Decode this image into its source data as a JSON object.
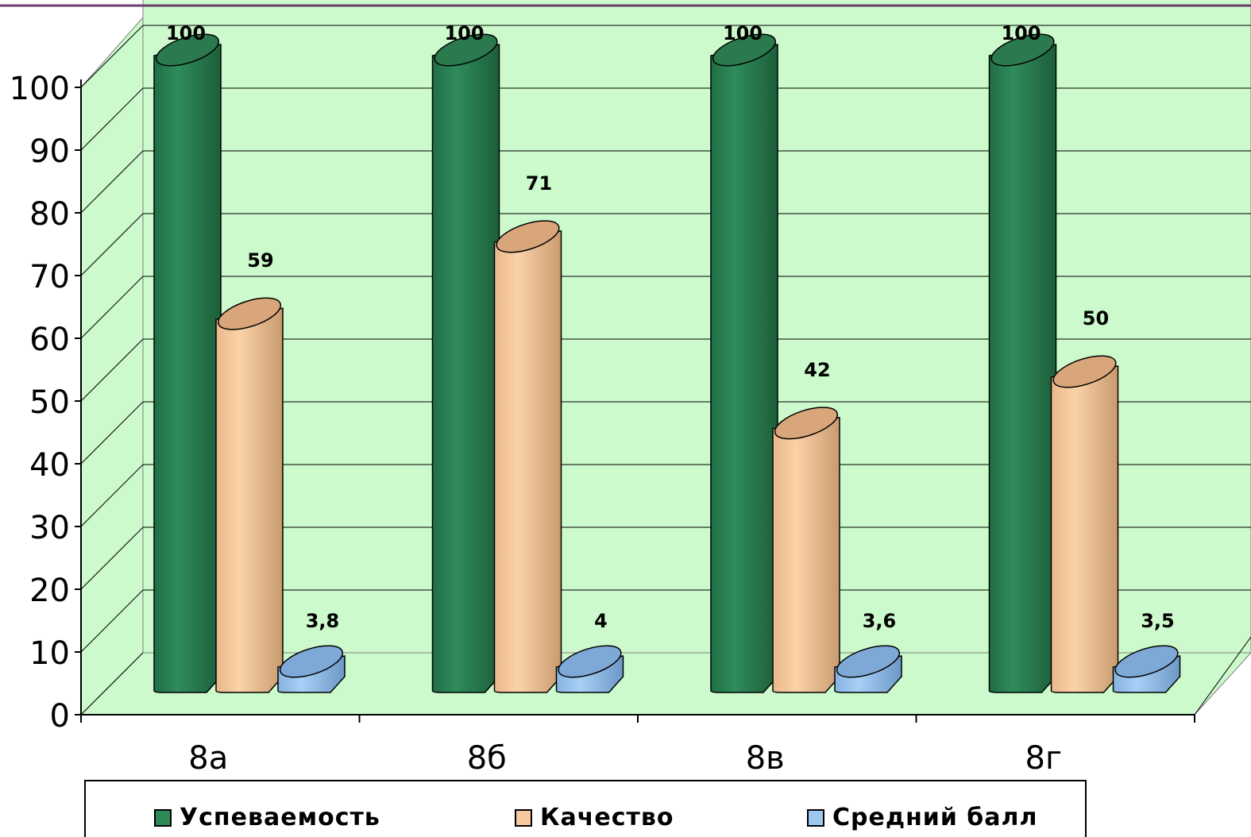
{
  "chart_data": {
    "type": "bar",
    "categories": [
      "8а",
      "8б",
      "8в",
      "8г"
    ],
    "ylim": [
      0,
      100
    ],
    "y_ticks": [
      "0",
      "10",
      "20",
      "30",
      "40",
      "50",
      "60",
      "70",
      "80",
      "90",
      "100"
    ],
    "grid": true,
    "legend_position": "bottom",
    "series": [
      {
        "name": "Успеваемость",
        "values": [
          100,
          100,
          100,
          100
        ],
        "labels": [
          "100",
          "100",
          "100",
          "100"
        ],
        "color": "#2e8b57"
      },
      {
        "name": "Качество",
        "values": [
          59,
          71,
          42,
          50
        ],
        "labels": [
          "59",
          "71",
          "42",
          "50"
        ],
        "color": "#f8c9a0"
      },
      {
        "name": "Средний балл",
        "values": [
          3.8,
          4,
          3.6,
          3.5
        ],
        "labels": [
          "3,8",
          "4",
          "3,6",
          "3,5"
        ],
        "color": "#9ec7f0"
      }
    ]
  },
  "colors": {
    "background_wall": "#ccfacc",
    "gridline": "#000000"
  }
}
